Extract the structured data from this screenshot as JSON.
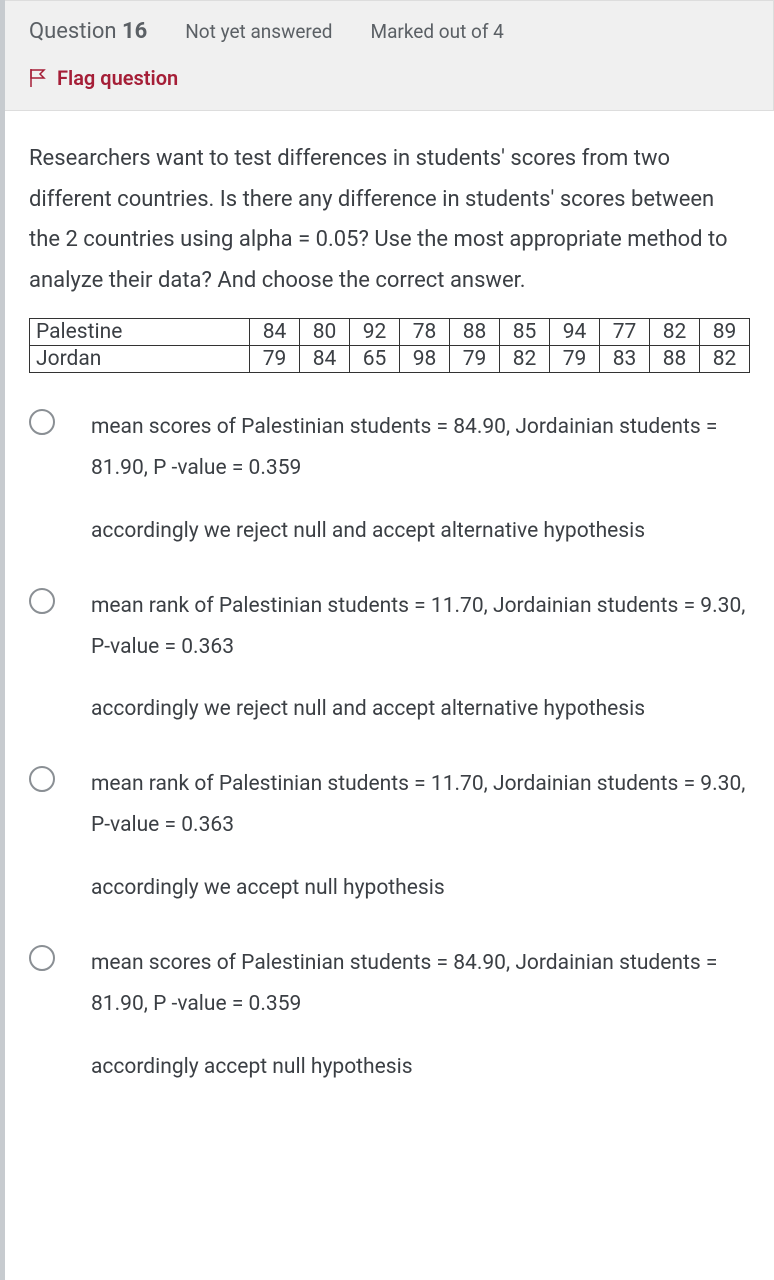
{
  "header": {
    "question_label": "Question",
    "question_number": "16",
    "status": "Not yet answered",
    "marks": "Marked out of 4",
    "flag_label": "Flag question"
  },
  "question_text": "Researchers want to test differences in students' scores from two different countries. Is there any difference in students' scores between the 2 countries using alpha = 0.05? Use the most appropriate method to analyze their data? And choose the correct answer.",
  "table": {
    "columns_count": 11,
    "rows": [
      {
        "label": "Palestine",
        "values": [
          "84",
          "80",
          "92",
          "78",
          "88",
          "85",
          "94",
          "77",
          "82",
          "89"
        ]
      },
      {
        "label": "Jordan",
        "values": [
          "79",
          "84",
          "65",
          "98",
          "79",
          "82",
          "79",
          "83",
          "88",
          "82"
        ]
      }
    ],
    "border_color": "#333333",
    "cell_fontsize": 21
  },
  "options": [
    {
      "line1": "mean scores of Palestinian students = 84.90, Jordainian students = 81.90, P -value = 0.359",
      "line2": "accordingly we reject null and accept alternative hypothesis"
    },
    {
      "line1": "mean rank of Palestinian students = 11.70, Jordainian students = 9.30, P-value = 0.363",
      "line2": "accordingly we reject null and accept alternative hypothesis"
    },
    {
      "line1": "mean rank of Palestinian students = 11.70, Jordainian students = 9.30, P-value = 0.363",
      "line2": "accordingly we accept null hypothesis"
    },
    {
      "line1": "mean scores of Palestinian students = 84.90, Jordainian students = 81.90, P -value = 0.359",
      "line2": "accordingly accept null hypothesis"
    }
  ],
  "colors": {
    "page_bg": "#ffffff",
    "header_bg": "#f0f0f0",
    "header_border": "#dddddd",
    "left_accent": "#c7cbcf",
    "text": "#3b3f44",
    "muted_text": "#5b6065",
    "flag_color": "#a51e37",
    "radio_border": "#8a8f94"
  },
  "typography": {
    "question_fontsize": 22,
    "option_fontsize": 21,
    "header_title_fontsize": 22,
    "header_status_fontsize": 19,
    "flag_fontsize": 20
  }
}
